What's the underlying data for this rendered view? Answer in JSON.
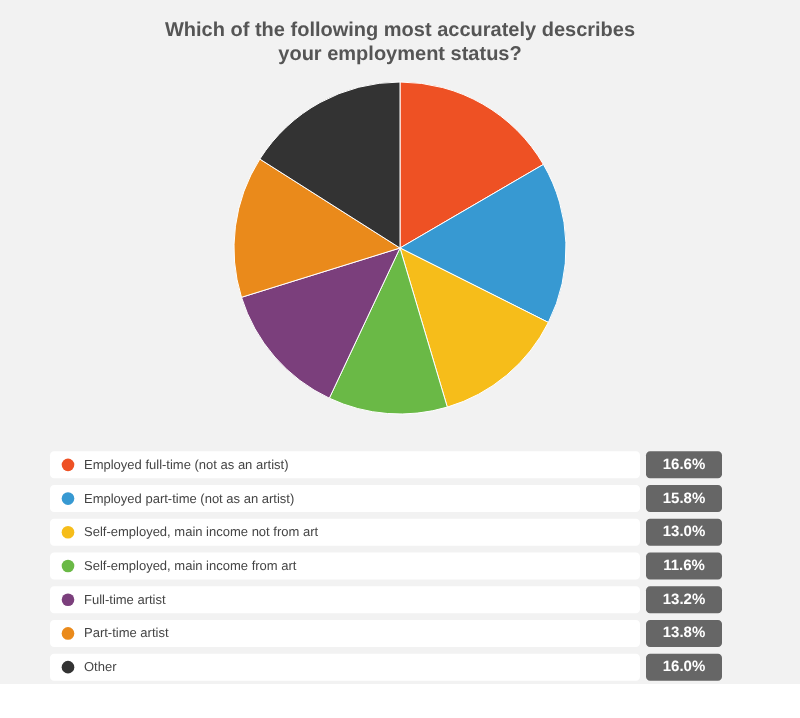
{
  "chart_data": {
    "type": "pie",
    "title": "Which of the following most accurately describes your employment status?",
    "categories": [
      "Employed full-time (not as an artist)",
      "Employed part-time (not as an artist)",
      "Self-employed, main income not from art",
      "Self-employed, main income from art",
      "Full-time artist",
      "Part-time artist",
      "Other"
    ],
    "values": [
      16.6,
      15.8,
      13.0,
      11.6,
      13.2,
      13.8,
      16.0
    ],
    "value_labels": [
      "16.6%",
      "15.8%",
      "13.0%",
      "11.6%",
      "13.2%",
      "13.8%",
      "16.0%"
    ],
    "colors": [
      "#ee5124",
      "#3799d2",
      "#f6bd1a",
      "#6ab946",
      "#7b3f7c",
      "#ea8a1b",
      "#333333"
    ],
    "legend": "bottom"
  }
}
